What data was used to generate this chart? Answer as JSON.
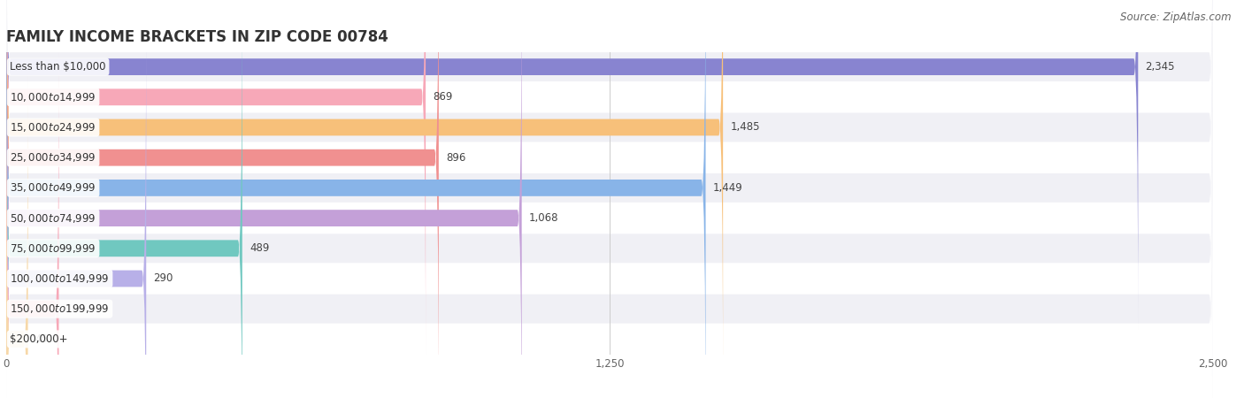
{
  "title": "FAMILY INCOME BRACKETS IN ZIP CODE 00784",
  "source": "Source: ZipAtlas.com",
  "categories": [
    "Less than $10,000",
    "$10,000 to $14,999",
    "$15,000 to $24,999",
    "$25,000 to $34,999",
    "$35,000 to $49,999",
    "$50,000 to $74,999",
    "$75,000 to $99,999",
    "$100,000 to $149,999",
    "$150,000 to $199,999",
    "$200,000+"
  ],
  "values": [
    2345,
    869,
    1485,
    896,
    1449,
    1068,
    489,
    290,
    109,
    45
  ],
  "bar_colors": [
    "#8884d0",
    "#f7a8b8",
    "#f7c07a",
    "#f09090",
    "#88b4e8",
    "#c4a0d8",
    "#70c8c0",
    "#b8b0e8",
    "#f7a8b8",
    "#f7d8a8"
  ],
  "background_color": "#ffffff",
  "row_bg_colors": [
    "#f0f0f5",
    "#ffffff"
  ],
  "xlim": [
    0,
    2500
  ],
  "xticks": [
    0,
    1250,
    2500
  ],
  "title_fontsize": 12,
  "label_fontsize": 8.5,
  "value_fontsize": 8.5,
  "source_fontsize": 8.5
}
